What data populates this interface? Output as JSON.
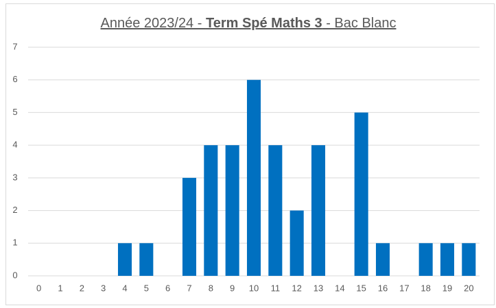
{
  "chart_data": {
    "type": "bar",
    "title": [
      "Année 2023/24 - ",
      "Term Spé Maths 3",
      " - Bac Blanc"
    ],
    "categories": [
      "0",
      "1",
      "2",
      "3",
      "4",
      "5",
      "6",
      "7",
      "8",
      "9",
      "10",
      "11",
      "12",
      "13",
      "14",
      "15",
      "16",
      "17",
      "18",
      "19",
      "20"
    ],
    "values": [
      0,
      0,
      0,
      0,
      1,
      1,
      0,
      3,
      4,
      4,
      6,
      4,
      2,
      4,
      0,
      5,
      1,
      0,
      1,
      1,
      1
    ],
    "color": "#0070c0",
    "ylim": [
      0,
      7
    ],
    "yticks": [
      0,
      1,
      2,
      3,
      4,
      5,
      6,
      7
    ],
    "grid": true
  }
}
